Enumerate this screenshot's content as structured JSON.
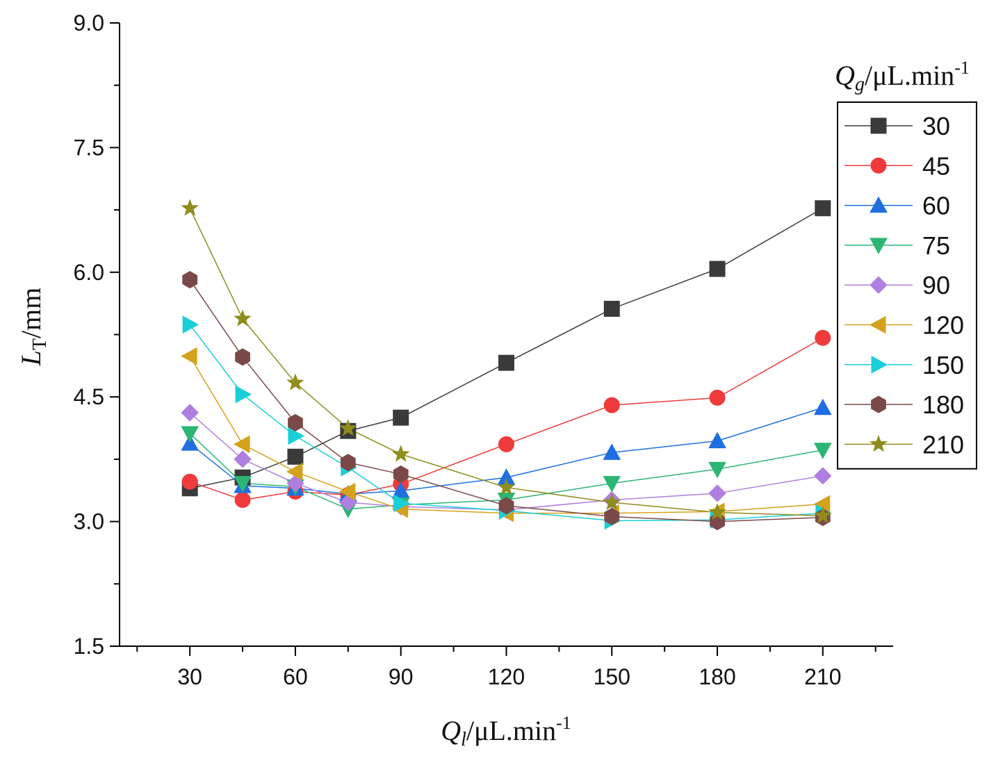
{
  "chart_data": {
    "type": "line",
    "x": [
      30,
      45,
      60,
      75,
      90,
      120,
      150,
      180,
      210
    ],
    "xticks": [
      30,
      60,
      90,
      120,
      150,
      180,
      210
    ],
    "xtick_labels": [
      "30",
      "60",
      "90",
      "120",
      "150",
      "180",
      "210"
    ],
    "xlim": [
      10,
      230
    ],
    "yticks": [
      1.5,
      3.0,
      4.5,
      6.0,
      7.5,
      9.0
    ],
    "ytick_labels": [
      "1.5",
      "3.0",
      "4.5",
      "6.0",
      "7.5",
      "9.0"
    ],
    "ylim": [
      1.5,
      9.0
    ],
    "xlabel": {
      "main": "Q",
      "sub": "l",
      "unit": "/μL.min",
      "sup": "-1"
    },
    "ylabel": {
      "main": "L",
      "sub": "T",
      "unit": "/mm"
    },
    "legend": {
      "title_main": "Q",
      "title_sub": "g",
      "title_unit": "/μL.min",
      "title_sup": "-1",
      "position": "right"
    },
    "series": [
      {
        "name": "30",
        "color": "#3a3a3a",
        "marker": "square",
        "values": [
          3.4,
          3.53,
          3.78,
          4.09,
          4.25,
          4.91,
          5.56,
          6.04,
          6.77
        ]
      },
      {
        "name": "45",
        "color": "#ef3b3b",
        "marker": "circle",
        "values": [
          3.48,
          3.26,
          3.36,
          3.32,
          3.45,
          3.93,
          4.4,
          4.49,
          5.21
        ]
      },
      {
        "name": "60",
        "color": "#1f6fe0",
        "marker": "triangle-up",
        "values": [
          3.94,
          3.43,
          3.4,
          3.33,
          3.37,
          3.53,
          3.83,
          3.97,
          4.37
        ]
      },
      {
        "name": "75",
        "color": "#2bb673",
        "marker": "triangle-down",
        "values": [
          4.06,
          3.46,
          3.42,
          3.15,
          3.2,
          3.26,
          3.46,
          3.63,
          3.86
        ]
      },
      {
        "name": "90",
        "color": "#b07ee0",
        "marker": "diamond",
        "values": [
          4.31,
          3.75,
          3.46,
          3.23,
          3.18,
          3.14,
          3.26,
          3.34,
          3.55
        ]
      },
      {
        "name": "120",
        "color": "#d4a21c",
        "marker": "triangle-left",
        "values": [
          4.99,
          3.93,
          3.6,
          3.36,
          3.15,
          3.1,
          3.1,
          3.12,
          3.21
        ]
      },
      {
        "name": "150",
        "color": "#19cfd8",
        "marker": "triangle-right",
        "values": [
          5.37,
          4.53,
          4.03,
          3.65,
          3.22,
          3.13,
          3.01,
          3.02,
          3.1
        ]
      },
      {
        "name": "180",
        "color": "#7a4a48",
        "marker": "hexagon",
        "values": [
          5.91,
          4.98,
          4.19,
          3.71,
          3.57,
          3.19,
          3.06,
          3.0,
          3.05
        ]
      },
      {
        "name": "210",
        "color": "#8f8d1c",
        "marker": "star",
        "values": [
          6.77,
          5.44,
          4.67,
          4.12,
          3.81,
          3.41,
          3.23,
          3.11,
          3.07
        ]
      }
    ]
  }
}
